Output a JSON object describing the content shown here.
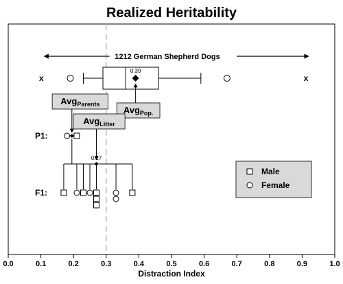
{
  "chart_data": {
    "type": "box",
    "title": "Realized Heritability",
    "xlabel": "Distraction Index",
    "xlim": [
      0.0,
      1.0
    ],
    "xticks": [
      "0.0",
      "0.1",
      "0.2",
      "0.3",
      "0.4",
      "0.5",
      "0.6",
      "0.7",
      "0.8",
      "0.9",
      "1.0"
    ],
    "grid": false,
    "population": {
      "label": "1212 German Shepherd Dogs",
      "whisker_low": 0.23,
      "q1": 0.29,
      "median": 0.36,
      "q3": 0.46,
      "whisker_high": 0.59,
      "mean": 0.39,
      "mean_label": "0.39",
      "outliers_circle": [
        0.19,
        0.67
      ],
      "extremes_x": [
        0.11,
        0.92
      ],
      "extreme_marker": "x"
    },
    "reference_line_x": 0.3,
    "p1": {
      "label": "P1:",
      "female": 0.18,
      "male": 0.21,
      "mean": 0.195
    },
    "f1": {
      "label": "F1:",
      "mean": 0.27,
      "mean_label": "0.27",
      "offspring": [
        {
          "x": 0.17,
          "sex": "male"
        },
        {
          "x": 0.21,
          "sex": "female"
        },
        {
          "x": 0.23,
          "sex": "male"
        },
        {
          "x": 0.25,
          "sex": "female"
        },
        {
          "x": 0.27,
          "sex": "male"
        },
        {
          "x": 0.27,
          "sex": "male"
        },
        {
          "x": 0.27,
          "sex": "male"
        },
        {
          "x": 0.33,
          "sex": "female"
        },
        {
          "x": 0.33,
          "sex": "female"
        },
        {
          "x": 0.38,
          "sex": "male"
        }
      ]
    },
    "callouts": {
      "parents": {
        "main": "Avg",
        "sub": "Parents"
      },
      "litter": {
        "main": "Avg",
        "sub": "Litter"
      },
      "population": {
        "main": "Avg",
        "sub": "Pop."
      }
    },
    "legend": {
      "placement": "right",
      "entries": [
        {
          "label": "Male",
          "marker": "square"
        },
        {
          "label": "Female",
          "marker": "circle"
        }
      ]
    },
    "colors": {
      "axis": "#000000",
      "box_fill": "#ffffff",
      "callout_fill": "#d9d9d9",
      "legend_fill": "#d9d9d9",
      "dashed_line": "#bbbbbb"
    }
  }
}
